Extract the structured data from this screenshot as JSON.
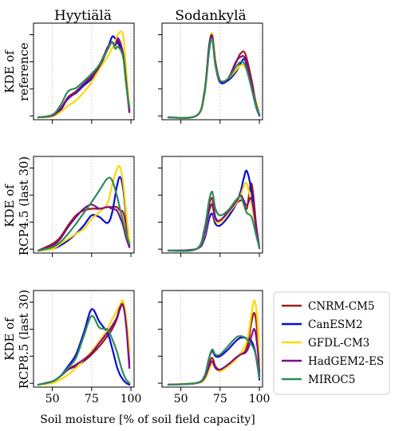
{
  "figure": {
    "columns": [
      "Hyytiälä",
      "Sodankylä"
    ],
    "rows": [
      [
        "KDE of",
        "reference"
      ],
      [
        "KDE of",
        "RCP4.5 (last 30)"
      ],
      [
        "KDE of",
        "RCP8.5 (last 30)"
      ]
    ],
    "xlabel": "Soil moisture [% of soil field capacity]",
    "xticks": [
      50,
      75,
      100
    ],
    "xtick_labels": [
      "50",
      "75",
      "100"
    ],
    "xlim": [
      38,
      102
    ],
    "legend_position": "right"
  },
  "chart_data": {
    "type": "line",
    "grid": true,
    "series": [
      {
        "name": "CNRM-CM5",
        "color": "#a11c1c"
      },
      {
        "name": "CanESM2",
        "color": "#0a0ad8"
      },
      {
        "name": "GFDL-CM3",
        "color": "#ffd700"
      },
      {
        "name": "HadGEM2-ES",
        "color": "#7b0f8a"
      },
      {
        "name": "MIROC5",
        "color": "#2e8b57"
      }
    ],
    "panels": [
      {
        "row": 0,
        "col": 0,
        "x": [
          41,
          50,
          55,
          60,
          65,
          70,
          75,
          80,
          85,
          88,
          90,
          92,
          95,
          97,
          99
        ],
        "series": [
          [
            0.0,
            0.02,
            0.1,
            0.24,
            0.31,
            0.4,
            0.5,
            0.63,
            0.82,
            0.9,
            0.86,
            0.91,
            0.76,
            0.4,
            0.06
          ],
          [
            0.0,
            0.02,
            0.08,
            0.23,
            0.29,
            0.38,
            0.46,
            0.6,
            0.81,
            0.96,
            0.94,
            0.88,
            0.75,
            0.45,
            0.1
          ],
          [
            0.0,
            0.01,
            0.06,
            0.14,
            0.2,
            0.3,
            0.42,
            0.58,
            0.72,
            0.82,
            0.9,
            1.0,
            0.98,
            0.55,
            0.1
          ],
          [
            0.0,
            0.02,
            0.1,
            0.22,
            0.3,
            0.4,
            0.48,
            0.61,
            0.83,
            0.89,
            0.86,
            0.94,
            0.76,
            0.42,
            0.07
          ],
          [
            0.0,
            0.03,
            0.14,
            0.31,
            0.35,
            0.43,
            0.52,
            0.63,
            0.8,
            0.9,
            0.82,
            0.84,
            0.72,
            0.38,
            0.12
          ]
        ]
      },
      {
        "row": 0,
        "col": 1,
        "x": [
          42,
          60,
          65,
          68,
          70,
          72,
          75,
          80,
          85,
          88,
          91,
          95,
          98,
          100
        ],
        "series": [
          [
            0.0,
            0.02,
            0.28,
            0.8,
            0.94,
            0.62,
            0.42,
            0.46,
            0.65,
            0.76,
            0.76,
            0.45,
            0.15,
            0.03
          ],
          [
            0.0,
            0.02,
            0.3,
            0.84,
            0.98,
            0.65,
            0.42,
            0.44,
            0.54,
            0.64,
            0.68,
            0.35,
            0.12,
            0.02
          ],
          [
            0.0,
            0.02,
            0.32,
            0.86,
            1.0,
            0.68,
            0.44,
            0.46,
            0.56,
            0.62,
            0.6,
            0.38,
            0.18,
            0.03
          ],
          [
            0.0,
            0.02,
            0.3,
            0.86,
            0.97,
            0.66,
            0.44,
            0.46,
            0.66,
            0.72,
            0.7,
            0.4,
            0.15,
            0.03
          ],
          [
            0.0,
            0.02,
            0.28,
            0.8,
            0.93,
            0.62,
            0.44,
            0.46,
            0.6,
            0.66,
            0.62,
            0.35,
            0.13,
            0.03
          ]
        ]
      },
      {
        "row": 1,
        "col": 0,
        "x": [
          41,
          50,
          55,
          60,
          65,
          70,
          75,
          80,
          85,
          88,
          91,
          93,
          95,
          97,
          99
        ],
        "series": [
          [
            0.0,
            0.08,
            0.16,
            0.3,
            0.42,
            0.48,
            0.5,
            0.5,
            0.52,
            0.52,
            0.52,
            0.48,
            0.46,
            0.3,
            0.06
          ],
          [
            0.0,
            0.02,
            0.06,
            0.12,
            0.2,
            0.3,
            0.42,
            0.4,
            0.33,
            0.45,
            0.76,
            0.88,
            0.75,
            0.4,
            0.1
          ],
          [
            0.0,
            0.02,
            0.08,
            0.14,
            0.2,
            0.26,
            0.38,
            0.46,
            0.56,
            0.78,
            0.97,
            1.0,
            0.82,
            0.45,
            0.1
          ],
          [
            0.0,
            0.06,
            0.14,
            0.28,
            0.4,
            0.5,
            0.55,
            0.5,
            0.52,
            0.5,
            0.48,
            0.4,
            0.3,
            0.15,
            0.04
          ],
          [
            0.0,
            0.04,
            0.1,
            0.2,
            0.32,
            0.45,
            0.58,
            0.72,
            0.86,
            0.84,
            0.66,
            0.5,
            0.35,
            0.2,
            0.08
          ]
        ]
      },
      {
        "row": 1,
        "col": 1,
        "x": [
          42,
          60,
          65,
          68,
          70,
          72,
          75,
          80,
          85,
          88,
          90,
          92,
          95,
          98,
          100
        ],
        "series": [
          [
            0.0,
            0.02,
            0.22,
            0.55,
            0.62,
            0.4,
            0.36,
            0.46,
            0.56,
            0.6,
            0.58,
            0.5,
            0.8,
            0.3,
            0.03
          ],
          [
            0.0,
            0.02,
            0.14,
            0.38,
            0.44,
            0.32,
            0.3,
            0.4,
            0.55,
            0.7,
            0.86,
            0.95,
            0.7,
            0.25,
            0.03
          ],
          [
            0.0,
            0.02,
            0.18,
            0.46,
            0.52,
            0.36,
            0.34,
            0.44,
            0.56,
            0.66,
            0.76,
            0.8,
            0.55,
            0.22,
            0.03
          ],
          [
            0.0,
            0.02,
            0.2,
            0.48,
            0.55,
            0.38,
            0.36,
            0.46,
            0.58,
            0.66,
            0.6,
            0.54,
            0.62,
            0.26,
            0.03
          ],
          [
            0.0,
            0.02,
            0.26,
            0.6,
            0.7,
            0.5,
            0.42,
            0.48,
            0.6,
            0.65,
            0.55,
            0.45,
            0.4,
            0.18,
            0.03
          ]
        ]
      },
      {
        "row": 2,
        "col": 0,
        "x": [
          41,
          50,
          55,
          60,
          65,
          70,
          75,
          80,
          85,
          88,
          91,
          93,
          95,
          97,
          99
        ],
        "series": [
          [
            0.0,
            0.04,
            0.1,
            0.18,
            0.22,
            0.28,
            0.36,
            0.46,
            0.58,
            0.66,
            0.78,
            0.9,
            0.96,
            0.75,
            0.25
          ],
          [
            0.0,
            0.04,
            0.1,
            0.22,
            0.36,
            0.62,
            0.9,
            0.75,
            0.62,
            0.44,
            0.22,
            0.12,
            0.06,
            0.02,
            0.0
          ],
          [
            0.0,
            0.02,
            0.06,
            0.12,
            0.2,
            0.3,
            0.4,
            0.52,
            0.66,
            0.78,
            0.88,
            0.95,
            1.0,
            0.8,
            0.4
          ],
          [
            0.0,
            0.04,
            0.1,
            0.18,
            0.24,
            0.3,
            0.38,
            0.5,
            0.62,
            0.7,
            0.8,
            0.92,
            0.95,
            0.7,
            0.2
          ],
          [
            0.0,
            0.04,
            0.1,
            0.2,
            0.32,
            0.58,
            0.82,
            0.68,
            0.66,
            0.55,
            0.4,
            0.26,
            0.14,
            0.06,
            0.02
          ]
        ]
      },
      {
        "row": 2,
        "col": 1,
        "x": [
          42,
          60,
          65,
          68,
          70,
          72,
          75,
          80,
          85,
          88,
          91,
          93,
          95,
          97,
          99,
          100
        ],
        "series": [
          [
            0.0,
            0.02,
            0.1,
            0.26,
            0.32,
            0.22,
            0.18,
            0.24,
            0.32,
            0.36,
            0.4,
            0.52,
            0.75,
            0.85,
            0.55,
            0.15
          ],
          [
            0.0,
            0.02,
            0.1,
            0.32,
            0.4,
            0.34,
            0.34,
            0.42,
            0.52,
            0.56,
            0.56,
            0.55,
            0.52,
            0.42,
            0.2,
            0.06
          ],
          [
            0.0,
            0.02,
            0.06,
            0.18,
            0.26,
            0.2,
            0.16,
            0.22,
            0.3,
            0.38,
            0.46,
            0.6,
            0.85,
            1.0,
            0.7,
            0.2
          ],
          [
            0.0,
            0.02,
            0.08,
            0.22,
            0.28,
            0.2,
            0.18,
            0.24,
            0.32,
            0.36,
            0.38,
            0.44,
            0.58,
            0.66,
            0.4,
            0.1
          ],
          [
            0.0,
            0.02,
            0.1,
            0.32,
            0.42,
            0.36,
            0.36,
            0.46,
            0.56,
            0.58,
            0.56,
            0.52,
            0.48,
            0.4,
            0.22,
            0.08
          ]
        ]
      }
    ]
  }
}
